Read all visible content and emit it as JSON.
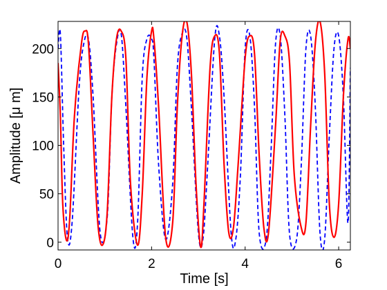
{
  "chart_data": {
    "type": "line",
    "title": "",
    "xlabel": "Time [s]",
    "ylabel": "Amplitude [μ m]",
    "xlim": [
      0,
      6.25
    ],
    "ylim": [
      -8,
      228
    ],
    "xticks": [
      0,
      2,
      4,
      6
    ],
    "xtick_labels": [
      "0",
      "2",
      "4",
      "6"
    ],
    "yticks": [
      0,
      50,
      100,
      150,
      200
    ],
    "ytick_labels": [
      "0",
      "50",
      "100",
      "150",
      "200"
    ],
    "grid": false,
    "legend": "none",
    "series": [
      {
        "style": "dashed",
        "color": "#0000ff",
        "x": [
          0.0,
          0.05,
          0.12,
          0.2,
          0.3,
          0.45,
          0.55,
          0.65,
          0.75,
          0.9,
          1.05,
          1.15,
          1.25,
          1.35,
          1.45,
          1.6,
          1.7,
          1.8,
          1.9,
          2.0,
          2.05,
          2.15,
          2.3,
          2.45,
          2.55,
          2.65,
          2.75,
          2.85,
          3.0,
          3.1,
          3.2,
          3.35,
          3.45,
          3.55,
          3.7,
          3.8,
          3.9,
          4.0,
          4.1,
          4.2,
          4.3,
          4.45,
          4.55,
          4.65,
          4.75,
          4.85,
          4.95,
          5.1,
          5.2,
          5.3,
          5.4,
          5.5,
          5.6,
          5.7,
          5.8,
          5.9,
          6.0,
          6.1,
          6.2,
          6.25
        ],
        "y": [
          200,
          215,
          100,
          5,
          20,
          160,
          205,
          210,
          150,
          10,
          25,
          150,
          205,
          215,
          140,
          5,
          20,
          170,
          210,
          210,
          190,
          80,
          3,
          60,
          180,
          215,
          212,
          140,
          10,
          4,
          80,
          210,
          213,
          150,
          10,
          3,
          70,
          200,
          213,
          140,
          10,
          3,
          90,
          205,
          213,
          130,
          8,
          3,
          80,
          200,
          213,
          140,
          10,
          3,
          110,
          200,
          213,
          150,
          20,
          180
        ]
      },
      {
        "style": "solid",
        "color": "#ff0000",
        "x": [
          0.0,
          0.05,
          0.1,
          0.18,
          0.25,
          0.35,
          0.5,
          0.58,
          0.65,
          0.75,
          0.85,
          0.95,
          1.05,
          1.15,
          1.25,
          1.35,
          1.45,
          1.55,
          1.7,
          1.8,
          1.9,
          2.0,
          2.05,
          2.15,
          2.3,
          2.45,
          2.55,
          2.65,
          2.75,
          2.85,
          2.95,
          3.05,
          3.12,
          3.25,
          3.35,
          3.45,
          3.55,
          3.65,
          3.75,
          3.85,
          4.0,
          4.1,
          4.2,
          4.3,
          4.4,
          4.5,
          4.65,
          4.75,
          4.85,
          4.95,
          5.05,
          5.2,
          5.3,
          5.4,
          5.5,
          5.6,
          5.7,
          5.8,
          5.9,
          6.0,
          6.1,
          6.2,
          6.25
        ],
        "y": [
          185,
          130,
          40,
          2,
          25,
          130,
          205,
          218,
          205,
          110,
          20,
          -3,
          30,
          150,
          210,
          218,
          190,
          60,
          -3,
          50,
          170,
          218,
          210,
          140,
          5,
          20,
          140,
          212,
          228,
          175,
          60,
          -5,
          40,
          180,
          213,
          195,
          80,
          10,
          15,
          80,
          190,
          213,
          195,
          90,
          15,
          10,
          120,
          208,
          213,
          185,
          70,
          15,
          20,
          120,
          205,
          228,
          175,
          40,
          5,
          40,
          150,
          210,
          200
        ]
      }
    ]
  }
}
